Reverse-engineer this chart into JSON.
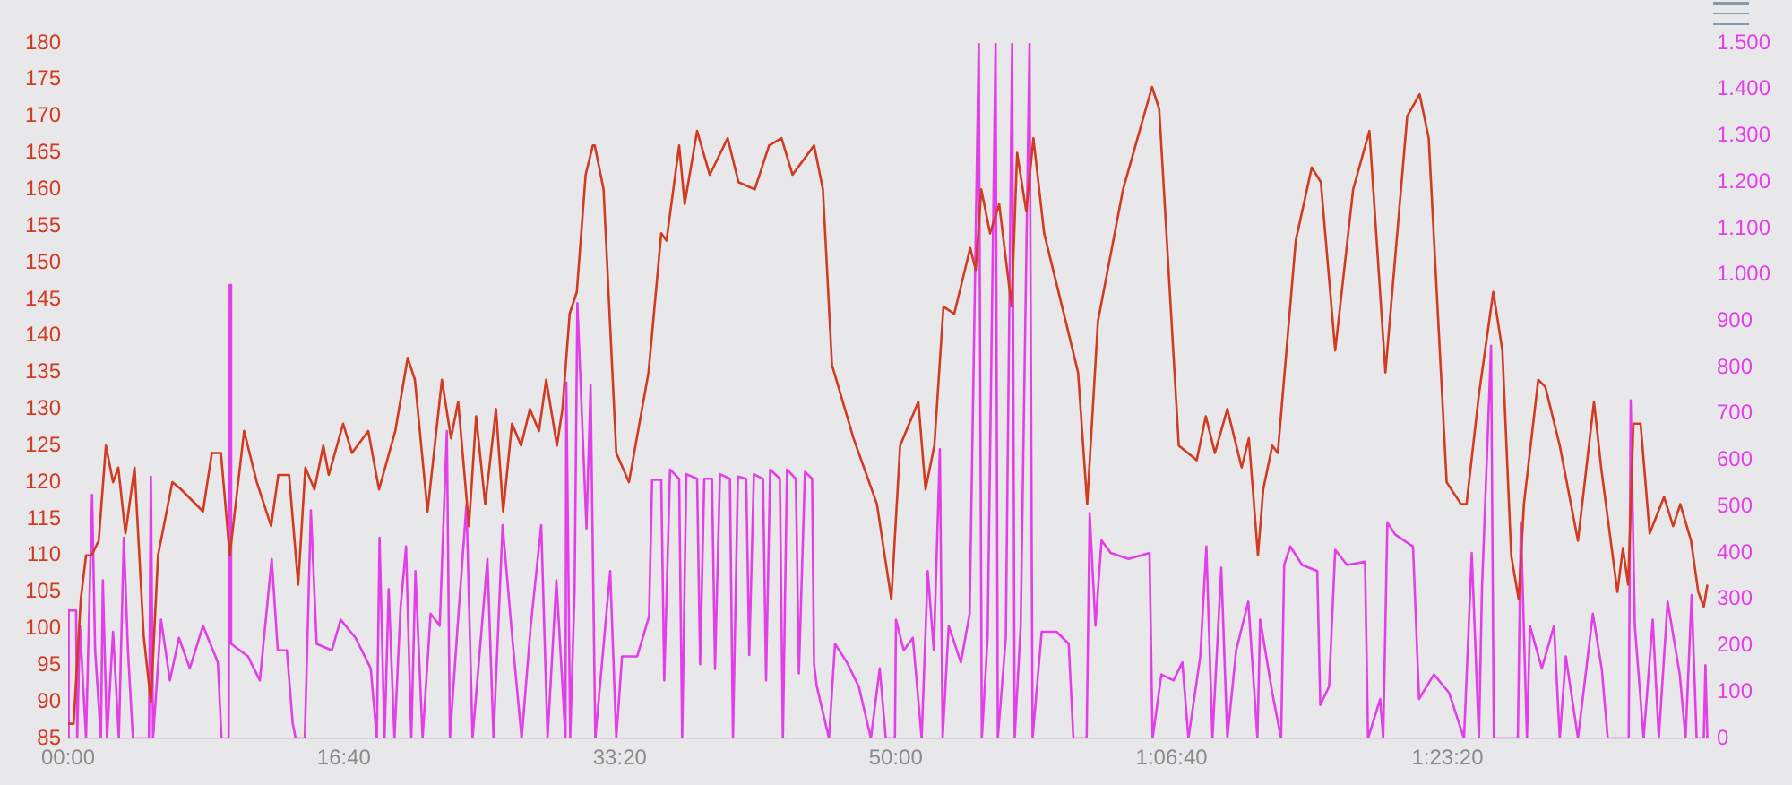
{
  "chart_data": {
    "type": "line",
    "marker": "none",
    "legend": false,
    "xlim": [
      0,
      5950
    ],
    "xticks": [
      {
        "value": 0,
        "label": "00:00"
      },
      {
        "value": 1000,
        "label": "16:40"
      },
      {
        "value": 2000,
        "label": "33:20"
      },
      {
        "value": 3000,
        "label": "50:00"
      },
      {
        "value": 4000,
        "label": "1:06:40"
      },
      {
        "value": 5000,
        "label": "1:23:20"
      }
    ],
    "ylim": [
      85,
      180
    ],
    "yticks": [
      85,
      90,
      95,
      100,
      105,
      110,
      115,
      120,
      125,
      130,
      135,
      140,
      145,
      150,
      155,
      160,
      165,
      170,
      175,
      180
    ],
    "y2lim": [
      0,
      1500
    ],
    "y2ticks": [
      0,
      100,
      200,
      300,
      400,
      500,
      600,
      700,
      800,
      900,
      {
        "value": 1000,
        "label": "1.000"
      },
      {
        "value": 1100,
        "label": "1.100"
      },
      {
        "value": 1200,
        "label": "1.200"
      },
      {
        "value": 1300,
        "label": "1.300"
      },
      {
        "value": 1400,
        "label": "1.400"
      },
      {
        "value": 1500,
        "label": "1.500"
      }
    ],
    "series": [
      {
        "color": "#d23a22",
        "x": [
          0,
          20,
          46,
          65,
          85,
          111,
          137,
          163,
          182,
          208,
          241,
          274,
          300,
          326,
          378,
          410,
          489,
          521,
          554,
          586,
          638,
          684,
          736,
          762,
          801,
          834,
          860,
          893,
          925,
          945,
          997,
          1029,
          1088,
          1127,
          1186,
          1231,
          1257,
          1303,
          1355,
          1388,
          1414,
          1453,
          1479,
          1512,
          1551,
          1577,
          1609,
          1642,
          1674,
          1707,
          1733,
          1772,
          1792,
          1818,
          1844,
          1876,
          1902,
          1909,
          1941,
          1987,
          2033,
          2104,
          2150,
          2169,
          2215,
          2235,
          2280,
          2326,
          2391,
          2430,
          2489,
          2541,
          2586,
          2626,
          2704,
          2736,
          2769,
          2847,
          2932,
          2984,
          3016,
          3082,
          3108,
          3140,
          3173,
          3212,
          3270,
          3290,
          3310,
          3342,
          3375,
          3420,
          3440,
          3473,
          3499,
          3538,
          3616,
          3661,
          3694,
          3733,
          3824,
          3929,
          3955,
          4026,
          4091,
          4124,
          4157,
          4202,
          4254,
          4280,
          4313,
          4332,
          4365,
          4385,
          4450,
          4508,
          4541,
          4593,
          4658,
          4717,
          4775,
          4854,
          4899,
          4932,
          4997,
          5049,
          5069,
          5114,
          5166,
          5199,
          5231,
          5258,
          5277,
          5329,
          5355,
          5407,
          5473,
          5531,
          5557,
          5616,
          5636,
          5655,
          5674,
          5700,
          5733,
          5785,
          5818,
          5844,
          5883,
          5909,
          5929,
          5942
        ],
        "values": [
          87,
          87,
          104,
          110,
          110,
          112,
          125,
          120,
          122,
          113,
          122,
          99,
          90,
          110,
          120,
          119,
          116,
          124,
          124,
          110,
          127,
          120,
          114,
          121,
          121,
          106,
          122,
          119,
          125,
          121,
          128,
          124,
          127,
          119,
          127,
          137,
          134,
          116,
          134,
          126,
          131,
          114,
          129,
          117,
          130,
          116,
          128,
          125,
          130,
          127,
          134,
          125,
          130,
          143,
          146,
          162,
          166,
          166,
          160,
          124,
          120,
          135,
          154,
          153,
          166,
          158,
          168,
          162,
          167,
          161,
          160,
          166,
          167,
          162,
          166,
          160,
          136,
          126,
          117,
          104,
          125,
          131,
          119,
          125,
          144,
          143,
          152,
          149,
          160,
          154,
          158,
          144,
          165,
          157,
          167,
          154,
          142,
          135,
          117,
          142,
          160,
          174,
          171,
          125,
          123,
          129,
          124,
          130,
          122,
          126,
          110,
          119,
          125,
          124,
          153,
          163,
          161,
          138,
          160,
          168,
          135,
          170,
          173,
          167,
          120,
          117,
          117,
          132,
          146,
          138,
          110,
          104,
          117,
          134,
          133,
          125,
          112,
          131,
          122,
          105,
          111,
          106,
          128,
          128,
          113,
          118,
          114,
          117,
          112,
          105,
          103,
          106
        ]
      },
      {
        "color": "#e33fe8",
        "axis": "y2",
        "x": [
          0,
          2,
          29,
          33,
          43,
          65,
          87,
          98,
          119,
          126,
          141,
          163,
          184,
          202,
          217,
          235,
          293,
          300,
          308,
          337,
          369,
          402,
          441,
          489,
          543,
          556,
          582,
          586,
          591,
          652,
          695,
          738,
          760,
          793,
          814,
          825,
          858,
          880,
          901,
          956,
          988,
          1042,
          1097,
          1119,
          1129,
          1147,
          1162,
          1183,
          1205,
          1225,
          1244,
          1259,
          1285,
          1314,
          1347,
          1373,
          1384,
          1412,
          1444,
          1466,
          1520,
          1542,
          1575,
          1612,
          1644,
          1677,
          1715,
          1738,
          1770,
          1803,
          1806,
          1820,
          1836,
          1846,
          1879,
          1894,
          1911,
          1965,
          1987,
          2008,
          2063,
          2106,
          2117,
          2150,
          2161,
          2182,
          2215,
          2226,
          2241,
          2280,
          2291,
          2306,
          2334,
          2345,
          2363,
          2399,
          2410,
          2428,
          2458,
          2469,
          2486,
          2519,
          2530,
          2545,
          2580,
          2591,
          2606,
          2638,
          2649,
          2671,
          2697,
          2704,
          2714,
          2758,
          2780,
          2823,
          2866,
          2910,
          2942,
          2964,
          2997,
          3001,
          3029,
          3062,
          3094,
          3116,
          3138,
          3160,
          3170,
          3192,
          3236,
          3268,
          3301,
          3312,
          3333,
          3362,
          3370,
          3399,
          3422,
          3431,
          3453,
          3485,
          3496,
          3529,
          3583,
          3627,
          3644,
          3692,
          3703,
          3724,
          3746,
          3779,
          3844,
          3920,
          3931,
          3963,
          4007,
          4039,
          4061,
          4104,
          4126,
          4148,
          4180,
          4202,
          4234,
          4278,
          4311,
          4321,
          4365,
          4397,
          4408,
          4430,
          4473,
          4528,
          4539,
          4571,
          4593,
          4636,
          4701,
          4712,
          4756,
          4767,
          4782,
          4810,
          4875,
          4897,
          4951,
          5006,
          5060,
          5088,
          5114,
          5125,
          5158,
          5168,
          5190,
          5255,
          5266,
          5288,
          5299,
          5342,
          5386,
          5407,
          5429,
          5473,
          5527,
          5559,
          5581,
          5657,
          5664,
          5679,
          5711,
          5744,
          5766,
          5798,
          5842,
          5863,
          5885,
          5903,
          5929,
          5935,
          5942
        ],
        "values": [
          0,
          276,
          276,
          0,
          243,
          0,
          525,
          190,
          0,
          341,
          0,
          230,
          0,
          433,
          190,
          0,
          0,
          565,
          0,
          256,
          125,
          217,
          151,
          243,
          164,
          0,
          0,
          978,
          204,
          177,
          125,
          387,
          190,
          190,
          33,
          0,
          0,
          492,
          204,
          190,
          256,
          217,
          151,
          0,
          433,
          0,
          322,
          0,
          282,
          414,
          0,
          361,
          0,
          269,
          243,
          663,
          0,
          243,
          505,
          0,
          387,
          0,
          460,
          204,
          0,
          243,
          460,
          0,
          341,
          0,
          768,
          0,
          322,
          939,
          453,
          762,
          0,
          361,
          0,
          177,
          177,
          263,
          558,
          558,
          125,
          580,
          560,
          0,
          570,
          560,
          160,
          560,
          560,
          150,
          570,
          560,
          0,
          565,
          560,
          180,
          570,
          560,
          125,
          580,
          560,
          0,
          580,
          560,
          140,
          575,
          560,
          160,
          112,
          0,
          204,
          164,
          112,
          0,
          151,
          0,
          0,
          256,
          190,
          217,
          0,
          361,
          190,
          624,
          0,
          243,
          164,
          269,
          1500,
          0,
          217,
          1500,
          0,
          217,
          1500,
          0,
          243,
          1500,
          0,
          230,
          230,
          204,
          0,
          0,
          486,
          243,
          427,
          400,
          387,
          400,
          0,
          138,
          125,
          164,
          0,
          177,
          414,
          0,
          368,
          0,
          190,
          295,
          0,
          256,
          98,
          0,
          374,
          414,
          374,
          361,
          72,
          112,
          407,
          374,
          381,
          0,
          85,
          0,
          466,
          440,
          414,
          85,
          138,
          98,
          0,
          400,
          0,
          322,
          847,
          0,
          0,
          0,
          466,
          0,
          243,
          151,
          243,
          0,
          177,
          0,
          269,
          151,
          0,
          0,
          729,
          243,
          0,
          256,
          0,
          295,
          138,
          0,
          309,
          0,
          0,
          158,
          0
        ]
      }
    ]
  }
}
